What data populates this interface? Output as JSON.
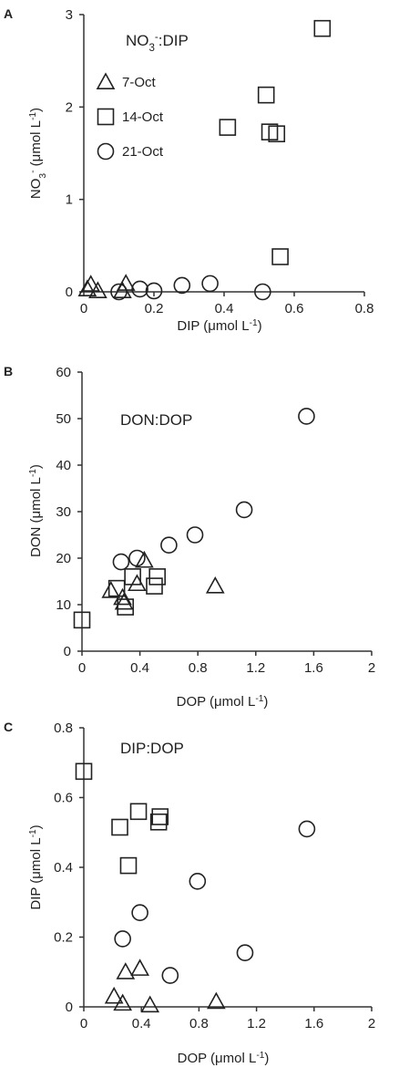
{
  "chart_data": [
    {
      "type": "scatter",
      "panel": "A",
      "title": "NO3-:DIP",
      "title_parts": [
        "NO",
        "3",
        "-",
        ":DIP"
      ],
      "xlabel": "DIP (μmol L-1)",
      "xlabel_parts": [
        "DIP (μmol L",
        "-1",
        ")"
      ],
      "ylabel": "NO3- (μmol L-1)",
      "ylabel_parts": [
        "NO",
        "3",
        "-",
        " (μmol L",
        "-1",
        ")"
      ],
      "xlim": [
        0,
        0.8
      ],
      "ylim": [
        0,
        3
      ],
      "xticks": [
        "0",
        "0.2",
        "0.4",
        "0.6",
        "0.8"
      ],
      "yticks": [
        "0",
        "1",
        "2",
        "3"
      ],
      "legend": {
        "placement": "left",
        "entries": [
          "7-Oct",
          "14-Oct",
          "21-Oct"
        ]
      },
      "series": [
        {
          "name": "7-Oct",
          "marker": "triangle",
          "points": [
            [
              0.01,
              0.03
            ],
            [
              0.02,
              0.08
            ],
            [
              0.04,
              0.01
            ],
            [
              0.11,
              0.01
            ],
            [
              0.12,
              0.09
            ]
          ]
        },
        {
          "name": "14-Oct",
          "marker": "square",
          "points": [
            [
              0.41,
              1.78
            ],
            [
              0.52,
              2.13
            ],
            [
              0.53,
              1.73
            ],
            [
              0.55,
              1.71
            ],
            [
              0.56,
              0.38
            ],
            [
              0.68,
              2.85
            ]
          ]
        },
        {
          "name": "21-Oct",
          "marker": "circle",
          "points": [
            [
              0.1,
              0.0
            ],
            [
              0.16,
              0.03
            ],
            [
              0.2,
              0.01
            ],
            [
              0.28,
              0.07
            ],
            [
              0.36,
              0.09
            ],
            [
              0.51,
              0.0
            ]
          ]
        }
      ]
    },
    {
      "type": "scatter",
      "panel": "B",
      "title": "DON:DOP",
      "title_parts": [
        "DON:DOP"
      ],
      "xlabel": "DOP (μmol L-1)",
      "xlabel_parts": [
        "DOP (μmol L",
        "-1",
        ")"
      ],
      "ylabel": "DON (μmol L-1)",
      "ylabel_parts": [
        "DON (μmol L",
        "-1",
        ")"
      ],
      "xlim": [
        0,
        2
      ],
      "ylim": [
        0,
        60
      ],
      "xticks": [
        "0",
        "0.4",
        "0.8",
        "1.2",
        "1.6",
        "2"
      ],
      "yticks": [
        "0",
        "10",
        "20",
        "30",
        "40",
        "50",
        "60"
      ],
      "series": [
        {
          "name": "7-Oct",
          "marker": "triangle",
          "points": [
            [
              0.2,
              13.0
            ],
            [
              0.28,
              11.5
            ],
            [
              0.29,
              10.5
            ],
            [
              0.38,
              14.5
            ],
            [
              0.43,
              19.5
            ],
            [
              0.92,
              14.0
            ]
          ]
        },
        {
          "name": "14-Oct",
          "marker": "square",
          "points": [
            [
              0.0,
              6.7
            ],
            [
              0.24,
              13.5
            ],
            [
              0.3,
              9.5
            ],
            [
              0.35,
              16.0
            ],
            [
              0.5,
              14.0
            ],
            [
              0.52,
              16.0
            ]
          ]
        },
        {
          "name": "21-Oct",
          "marker": "circle",
          "points": [
            [
              0.27,
              19.2
            ],
            [
              0.38,
              20.0
            ],
            [
              0.6,
              22.8
            ],
            [
              0.78,
              25.0
            ],
            [
              1.12,
              30.4
            ],
            [
              1.55,
              50.5
            ]
          ]
        }
      ]
    },
    {
      "type": "scatter",
      "panel": "C",
      "title": "DIP:DOP",
      "title_parts": [
        "DIP:DOP"
      ],
      "xlabel": "DOP (μmol L-1)",
      "xlabel_parts": [
        "DOP (μmol L",
        "-1",
        ")"
      ],
      "ylabel": "DIP (μmol L-1)",
      "ylabel_parts": [
        "DIP (μmol L",
        "-1",
        ")"
      ],
      "xlim": [
        0,
        2
      ],
      "ylim": [
        0,
        0.8
      ],
      "xticks": [
        "0",
        "0.4",
        "0.8",
        "1.2",
        "1.6",
        "2"
      ],
      "yticks": [
        "0",
        "0.2",
        "0.4",
        "0.6",
        "0.8"
      ],
      "series": [
        {
          "name": "7-Oct",
          "marker": "triangle",
          "points": [
            [
              0.21,
              0.03
            ],
            [
              0.27,
              0.01
            ],
            [
              0.29,
              0.1
            ],
            [
              0.39,
              0.11
            ],
            [
              0.46,
              0.005
            ],
            [
              0.92,
              0.015
            ]
          ]
        },
        {
          "name": "14-Oct",
          "marker": "square",
          "points": [
            [
              0.0,
              0.675
            ],
            [
              0.25,
              0.515
            ],
            [
              0.31,
              0.405
            ],
            [
              0.38,
              0.56
            ],
            [
              0.52,
              0.53
            ],
            [
              0.53,
              0.545
            ]
          ]
        },
        {
          "name": "21-Oct",
          "marker": "circle",
          "points": [
            [
              0.27,
              0.195
            ],
            [
              0.39,
              0.27
            ],
            [
              0.6,
              0.09
            ],
            [
              0.79,
              0.36
            ],
            [
              1.12,
              0.155
            ],
            [
              1.55,
              0.51
            ]
          ]
        }
      ]
    }
  ]
}
